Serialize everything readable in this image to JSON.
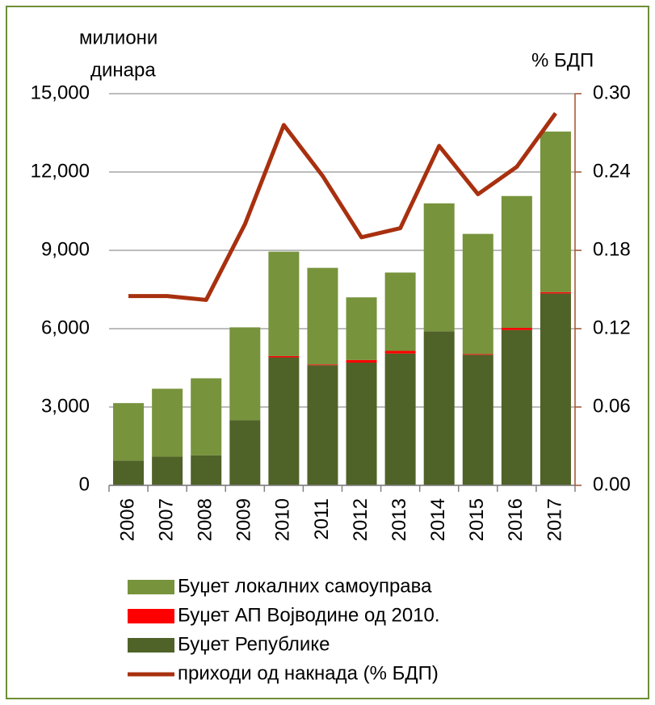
{
  "chart_data": {
    "type": "bar",
    "y_label": [
      "милиони",
      "динара"
    ],
    "y2_label": "% БДП",
    "categories": [
      "2006",
      "2007",
      "2008",
      "2009",
      "2010",
      "2011",
      "2012",
      "2013",
      "2014",
      "2015",
      "2016",
      "2017"
    ],
    "stacked": true,
    "series": [
      {
        "name": "Буџет Републике",
        "color": "#4f6228",
        "values": [
          950,
          1100,
          1150,
          2500,
          4900,
          4600,
          4700,
          5050,
          5900,
          5000,
          5950,
          7350
        ]
      },
      {
        "name": "Буџет АП Војводине од 2010.",
        "color": "#ff0000",
        "values": [
          0,
          0,
          0,
          0,
          50,
          30,
          100,
          100,
          0,
          30,
          80,
          50
        ]
      },
      {
        "name": "Буџет локалних самоуправа",
        "color": "#77933c",
        "values": [
          2200,
          2600,
          2950,
          3550,
          4000,
          3700,
          2400,
          3000,
          4900,
          4600,
          5050,
          6150
        ]
      },
      {
        "name": "приходи од накнада (% БДП)",
        "color": "#a8300f",
        "type": "line",
        "axis": "y2",
        "values": [
          0.145,
          0.145,
          0.142,
          0.2,
          0.276,
          0.237,
          0.19,
          0.197,
          0.26,
          0.223,
          0.244,
          0.285
        ]
      }
    ],
    "legend_order": [
      2,
      1,
      0,
      3
    ],
    "ylim": [
      0,
      15000
    ],
    "yticks": [
      0,
      {
        "value": 3000,
        "label": "3,000"
      },
      {
        "value": 6000,
        "label": "6,000"
      },
      {
        "value": 9000,
        "label": "9,000"
      },
      {
        "value": 12000,
        "label": "12,000"
      },
      {
        "value": 15000,
        "label": "15,000"
      }
    ],
    "y2lim": [
      0,
      0.3
    ],
    "y2ticks": [
      {
        "value": 0,
        "label": "0.00"
      },
      {
        "value": 0.06,
        "label": "0.06"
      },
      {
        "value": 0.12,
        "label": "0.12"
      },
      {
        "value": 0.18,
        "label": "0.18"
      },
      {
        "value": 0.24,
        "label": "0.24"
      },
      {
        "value": 0.3,
        "label": "0.30"
      }
    ],
    "y2_color": "#c00000",
    "grid": true
  }
}
